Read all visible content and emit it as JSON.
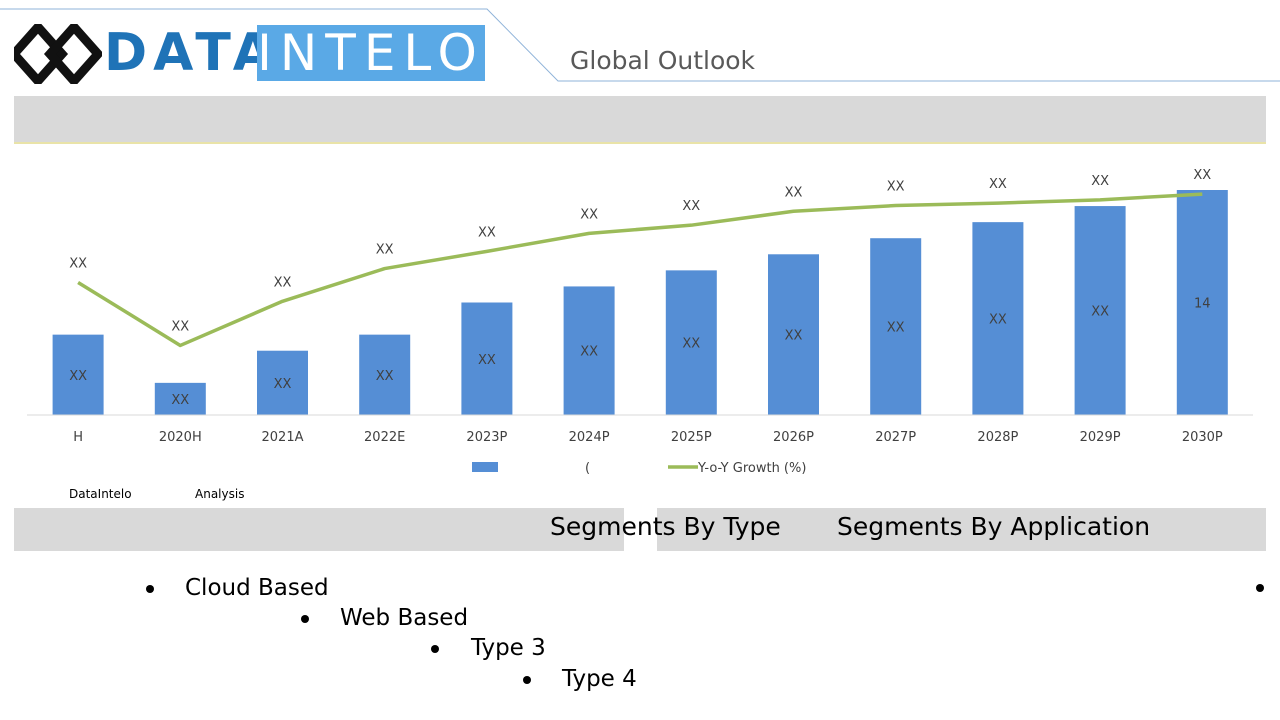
{
  "header": {
    "logo_left": "DATA",
    "logo_right": "INTELO",
    "subtitle": "Global Outlook"
  },
  "colors": {
    "bar": "#558ed5",
    "line": "#9bbb59",
    "grey_band": "#d9d9d9",
    "logo_dark": "#1f73b7",
    "logo_light": "#5aa9e6"
  },
  "chart_data": {
    "type": "bar",
    "categories": [
      "H",
      "2020H",
      "2021A",
      "2022E",
      "2023P",
      "2024P",
      "2025P",
      "2026P",
      "2027P",
      "2028P",
      "2029P",
      "2030P"
    ],
    "series": [
      {
        "type": "bar",
        "name": "(",
        "values": [
          5,
          2,
          4,
          5,
          7,
          8,
          9,
          10,
          11,
          12,
          13,
          14
        ],
        "data_labels": [
          "XX",
          "XX",
          "XX",
          "XX",
          "XX",
          "XX",
          "XX",
          "XX",
          "XX",
          "XX",
          "XX",
          "14"
        ]
      },
      {
        "type": "line",
        "name": "Y-o-Y Growth (%)",
        "values": [
          16.2,
          8.5,
          13.9,
          17.9,
          20.0,
          22.2,
          23.2,
          24.9,
          25.6,
          25.9,
          26.3,
          27.0
        ],
        "data_labels": [
          "XX",
          "XX",
          "XX",
          "XX",
          "XX",
          "XX",
          "XX",
          "XX",
          "XX",
          "XX",
          "XX",
          "XX"
        ]
      }
    ],
    "ylim": [
      0,
      14
    ],
    "y2lim": [
      0,
      27.5
    ],
    "grid": false,
    "legend": "bottom-center"
  },
  "source": {
    "left": "DataIntelo",
    "right": "Analysis"
  },
  "segments": {
    "type_title": "Segments By Type",
    "application_title": "Segments By Application",
    "types": [
      "Cloud Based",
      "Web Based",
      "Type 3",
      "Type 4"
    ]
  }
}
